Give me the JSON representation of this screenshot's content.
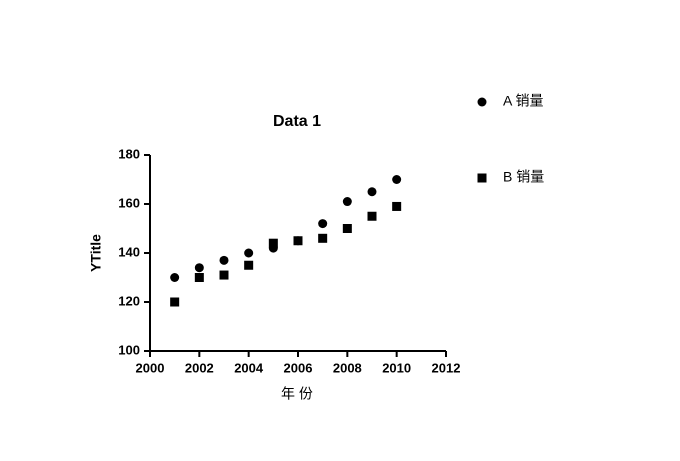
{
  "chart_data": {
    "type": "scatter",
    "title": "Data 1",
    "x_label": "年 份",
    "y_label": "YTitle",
    "series": [
      {
        "name": "A 销量",
        "color": "#000000",
        "marker": "circle",
        "x": [
          2001,
          2002,
          2003,
          2004,
          2005,
          2006,
          2007,
          2008,
          2009,
          2010
        ],
        "values": [
          130,
          134,
          137,
          140,
          142,
          145,
          152,
          161,
          165,
          170
        ]
      },
      {
        "name": "B 销量",
        "color": "#000000",
        "marker": "square",
        "x": [
          2001,
          2002,
          2003,
          2004,
          2005,
          2006,
          2007,
          2008,
          2009,
          2010
        ],
        "values": [
          120,
          130,
          131,
          135,
          144,
          145,
          146,
          150,
          155,
          159
        ]
      }
    ],
    "xlim": [
      2000,
      2012
    ],
    "xticks": [
      2000,
      2002,
      2004,
      2006,
      2008,
      2010,
      2012
    ],
    "ylim": [
      100,
      180
    ],
    "yticks": [
      100,
      120,
      140,
      160,
      180
    ],
    "grid": false,
    "legend": "right"
  }
}
